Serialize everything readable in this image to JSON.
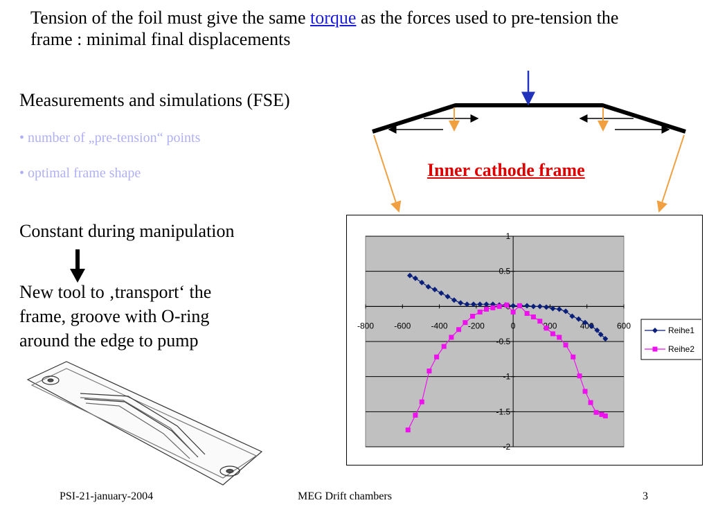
{
  "slide": {
    "title_before": "Tension of the foil must give the same ",
    "title_link": "torque",
    "title_after": " as the forces used to pre-tension the frame : minimal final displacements",
    "heading": "Measurements and simulations (FSE)",
    "bullets": [
      "• number of „pre-tension“ points",
      "• optimal frame shape"
    ],
    "constant_text": "Constant during  manipulation",
    "new_tool_text": "New tool to ‚transport‘ the\nframe, groove with O-ring\naround the edge to pump",
    "frame_label": "Inner cathode frame",
    "footer": {
      "left": "PSI-21-january-2004",
      "center": "MEG Drift chambers",
      "right": "3"
    }
  },
  "colors": {
    "series1": "#0a1f7a",
    "series2": "#ee11ee",
    "plot_bg": "#c0c0c0",
    "frame_label": "#dd0000",
    "orange_arrow": "#f0a040",
    "blue_arrow": "#2233bb"
  },
  "chart_data": {
    "type": "scatter",
    "title": "",
    "xlabel": "",
    "ylabel": "",
    "xlim": [
      -800,
      600
    ],
    "ylim": [
      -2,
      1
    ],
    "xticks": [
      "-800",
      "-600",
      "-400",
      "-200",
      "0",
      "200",
      "400",
      "600"
    ],
    "yticks": [
      "1",
      "0.5",
      "0",
      "-0.5",
      "-1",
      "-1.5",
      "-2"
    ],
    "grid": true,
    "legend_position": "right",
    "series": [
      {
        "name": "Reihe1",
        "marker": "diamond",
        "x": [
          -560,
          -530,
          -495,
          -460,
          -425,
          -390,
          -355,
          -320,
          -285,
          -250,
          -215,
          -180,
          -145,
          -110,
          -75,
          -40,
          0,
          40,
          75,
          110,
          145,
          180,
          215,
          250,
          285,
          320,
          355,
          390,
          425,
          455,
          475,
          500
        ],
        "y": [
          0.44,
          0.4,
          0.34,
          0.28,
          0.24,
          0.19,
          0.14,
          0.09,
          0.05,
          0.03,
          0.03,
          0.03,
          0.03,
          0.03,
          0.02,
          0.02,
          0.01,
          0.01,
          0.01,
          0.0,
          0.0,
          -0.01,
          -0.03,
          -0.04,
          -0.07,
          -0.14,
          -0.18,
          -0.23,
          -0.28,
          -0.34,
          -0.4,
          -0.46
        ]
      },
      {
        "name": "Reihe2",
        "marker": "square",
        "x": [
          -570,
          -530,
          -495,
          -455,
          -415,
          -375,
          -335,
          -295,
          -260,
          -220,
          -180,
          -145,
          -110,
          -75,
          -35,
          0,
          35,
          75,
          110,
          145,
          180,
          215,
          250,
          285,
          325,
          360,
          390,
          420,
          450,
          480,
          500
        ],
        "y": [
          -1.76,
          -1.55,
          -1.36,
          -0.92,
          -0.72,
          -0.57,
          -0.44,
          -0.33,
          -0.23,
          -0.14,
          -0.08,
          -0.04,
          -0.02,
          0.0,
          0.02,
          -0.08,
          0.01,
          -0.1,
          -0.15,
          -0.21,
          -0.31,
          -0.39,
          -0.44,
          -0.55,
          -0.72,
          -0.99,
          -1.21,
          -1.37,
          -1.51,
          -1.54,
          -1.56
        ]
      }
    ]
  }
}
